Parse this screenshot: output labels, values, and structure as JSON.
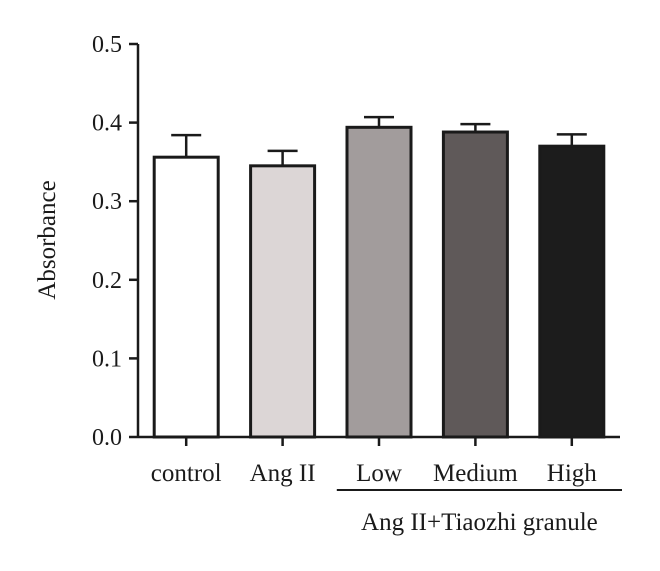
{
  "chart_data": {
    "type": "bar",
    "title": "",
    "xlabel": "",
    "ylabel": "Absorbance",
    "ylim": [
      0,
      0.5
    ],
    "yticks": [
      "0.0",
      "0.1",
      "0.2",
      "0.3",
      "0.4",
      "0.5"
    ],
    "yticks_values": [
      0,
      0.1,
      0.2,
      0.3,
      0.4,
      0.5
    ],
    "categories": [
      "control",
      "Ang II",
      "Low",
      "Medium",
      "High"
    ],
    "values": [
      0.356,
      0.345,
      0.394,
      0.388,
      0.37
    ],
    "errors": [
      0.028,
      0.019,
      0.013,
      0.01,
      0.015
    ],
    "bar_colors": [
      "#ffffff",
      "#dcd6d6",
      "#a29c9c",
      "#5f5959",
      "#1c1c1c"
    ],
    "group_label": "Ang II+Tiaozhi granule",
    "group_categories": [
      "Low",
      "Medium",
      "High"
    ],
    "grid": false,
    "legend": "none"
  }
}
